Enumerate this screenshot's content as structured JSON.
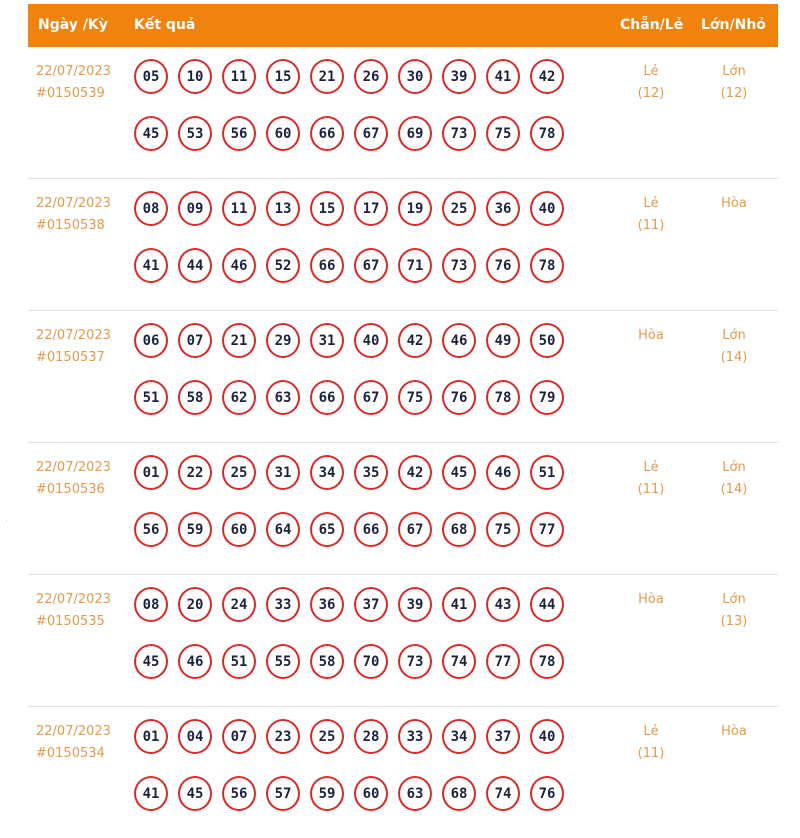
{
  "header": {
    "date_label": "Ngày /Kỳ",
    "result_label": "Kết quả",
    "parity_label": "Chẵn/Lẻ",
    "size_label": "Lớn/Nhỏ"
  },
  "colors": {
    "header_bg": "#f0830e",
    "accent_text": "#e49a4c",
    "ball_border": "#d92a2a",
    "ball_text": "#1c2340"
  },
  "rows": [
    {
      "date": "22/07/2023",
      "draw": "#0150539",
      "numbers": [
        "05",
        "10",
        "11",
        "15",
        "21",
        "26",
        "30",
        "39",
        "41",
        "42",
        "45",
        "53",
        "56",
        "60",
        "66",
        "67",
        "69",
        "73",
        "75",
        "78"
      ],
      "parity": "Lẻ",
      "parity_count": "(12)",
      "size": "Lớn",
      "size_count": "(12)"
    },
    {
      "date": "22/07/2023",
      "draw": "#0150538",
      "numbers": [
        "08",
        "09",
        "11",
        "13",
        "15",
        "17",
        "19",
        "25",
        "36",
        "40",
        "41",
        "44",
        "46",
        "52",
        "66",
        "67",
        "71",
        "73",
        "76",
        "78"
      ],
      "parity": "Lẻ",
      "parity_count": "(11)",
      "size": "Hòa",
      "size_count": ""
    },
    {
      "date": "22/07/2023",
      "draw": "#0150537",
      "numbers": [
        "06",
        "07",
        "21",
        "29",
        "31",
        "40",
        "42",
        "46",
        "49",
        "50",
        "51",
        "58",
        "62",
        "63",
        "66",
        "67",
        "75",
        "76",
        "78",
        "79"
      ],
      "parity": "Hòa",
      "parity_count": "",
      "size": "Lớn",
      "size_count": "(14)"
    },
    {
      "date": "22/07/2023",
      "draw": "#0150536",
      "numbers": [
        "01",
        "22",
        "25",
        "31",
        "34",
        "35",
        "42",
        "45",
        "46",
        "51",
        "56",
        "59",
        "60",
        "64",
        "65",
        "66",
        "67",
        "68",
        "75",
        "77"
      ],
      "parity": "Lẻ",
      "parity_count": "(11)",
      "size": "Lớn",
      "size_count": "(14)"
    },
    {
      "date": "22/07/2023",
      "draw": "#0150535",
      "numbers": [
        "08",
        "20",
        "24",
        "33",
        "36",
        "37",
        "39",
        "41",
        "43",
        "44",
        "45",
        "46",
        "51",
        "55",
        "58",
        "70",
        "73",
        "74",
        "77",
        "78"
      ],
      "parity": "Hòa",
      "parity_count": "",
      "size": "Lớn",
      "size_count": "(13)"
    },
    {
      "date": "22/07/2023",
      "draw": "#0150534",
      "numbers": [
        "01",
        "04",
        "07",
        "23",
        "25",
        "28",
        "33",
        "34",
        "37",
        "40",
        "41",
        "45",
        "56",
        "57",
        "59",
        "60",
        "63",
        "68",
        "74",
        "76"
      ],
      "parity": "Lẻ",
      "parity_count": "(11)",
      "size": "Hòa",
      "size_count": ""
    }
  ]
}
